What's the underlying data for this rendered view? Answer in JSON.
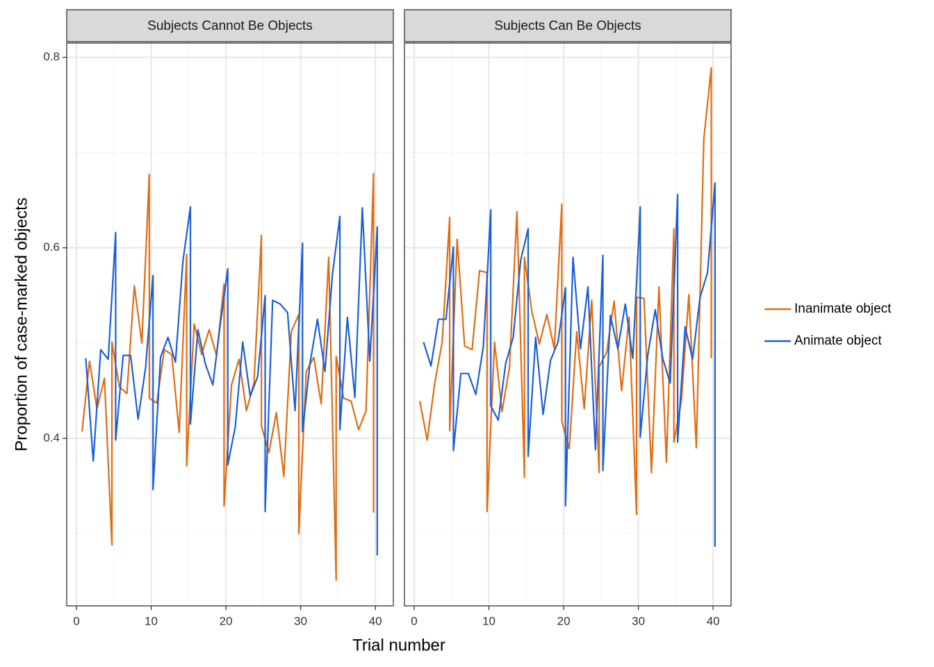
{
  "chart_data": [
    {
      "type": "line",
      "title": "Subjects Cannot Be Objects",
      "x_label": "Trial number",
      "y_label": "Proportion of case-marked objects",
      "xlim": [
        -1.3,
        42.4
      ],
      "ylim": [
        0.224,
        0.815
      ],
      "xticks": [
        0,
        10,
        20,
        30,
        40
      ],
      "x_minor_ticks": [
        5,
        15,
        25,
        35
      ],
      "yticks": [
        0.4,
        0.6,
        0.8
      ],
      "y_minor_ticks": [
        0.3,
        0.5,
        0.7
      ],
      "grid": true,
      "legend": "right",
      "series": [
        {
          "name": "Inanimate object",
          "color": "#e06c12",
          "x": [
            0.75,
            1.75,
            2.75,
            3.75,
            4.75,
            4.75,
            5.75,
            6.75,
            7.75,
            8.75,
            9.75,
            9.75,
            10.75,
            11.75,
            12.75,
            13.75,
            14.75,
            14.75,
            15.75,
            16.75,
            17.75,
            18.75,
            19.75,
            19.75,
            20.75,
            21.75,
            22.75,
            23.75,
            24.75,
            24.75,
            25.75,
            26.75,
            27.75,
            28.75,
            29.75,
            29.75,
            30.75,
            31.75,
            32.75,
            33.75,
            34.75,
            34.75,
            35.75,
            36.75,
            37.75,
            38.75,
            39.75,
            39.75
          ],
          "values": [
            0.407,
            0.481,
            0.431,
            0.463,
            0.288,
            0.501,
            0.454,
            0.447,
            0.56,
            0.5,
            0.677,
            0.442,
            0.437,
            0.493,
            0.488,
            0.406,
            0.593,
            0.371,
            0.52,
            0.488,
            0.514,
            0.487,
            0.562,
            0.329,
            0.456,
            0.483,
            0.429,
            0.458,
            0.613,
            0.413,
            0.385,
            0.427,
            0.36,
            0.512,
            0.53,
            0.3,
            0.47,
            0.485,
            0.436,
            0.59,
            0.251,
            0.486,
            0.442,
            0.439,
            0.409,
            0.429,
            0.678,
            0.322
          ]
        },
        {
          "name": "Animate object",
          "color": "#1a5fd8",
          "x": [
            1.25,
            2.25,
            3.25,
            4.25,
            5.25,
            5.25,
            6.25,
            7.25,
            8.25,
            9.25,
            10.25,
            10.25,
            11.25,
            12.25,
            13.25,
            14.25,
            15.25,
            15.25,
            16.25,
            17.25,
            18.25,
            19.25,
            20.25,
            20.25,
            21.25,
            22.25,
            23.25,
            24.25,
            25.25,
            25.25,
            26.25,
            27.25,
            28.25,
            29.25,
            30.25,
            30.25,
            31.25,
            32.25,
            33.25,
            34.25,
            35.25,
            35.25,
            36.25,
            37.25,
            38.25,
            39.25,
            40.25,
            40.25
          ],
          "values": [
            0.484,
            0.376,
            0.493,
            0.483,
            0.616,
            0.398,
            0.487,
            0.487,
            0.42,
            0.474,
            0.571,
            0.346,
            0.485,
            0.506,
            0.48,
            0.586,
            0.643,
            0.415,
            0.514,
            0.478,
            0.456,
            0.52,
            0.578,
            0.372,
            0.412,
            0.501,
            0.444,
            0.465,
            0.55,
            0.323,
            0.545,
            0.541,
            0.532,
            0.429,
            0.605,
            0.407,
            0.479,
            0.525,
            0.47,
            0.572,
            0.633,
            0.409,
            0.527,
            0.443,
            0.642,
            0.481,
            0.622,
            0.277
          ]
        }
      ]
    },
    {
      "type": "line",
      "title": "Subjects Can Be Objects",
      "xlim": [
        -1.3,
        42.4
      ],
      "ylim": [
        0.224,
        0.815
      ],
      "xticks": [
        0,
        10,
        20,
        30,
        40
      ],
      "x_minor_ticks": [
        5,
        15,
        25,
        35
      ],
      "y_minor_ticks": [
        0.3,
        0.5,
        0.7
      ],
      "grid": true,
      "series": [
        {
          "color": "#e06c12",
          "x": [
            0.75,
            1.75,
            2.75,
            3.75,
            4.75,
            4.75,
            5.75,
            6.75,
            7.75,
            8.75,
            9.75,
            9.75,
            10.75,
            11.75,
            12.75,
            13.75,
            14.75,
            14.75,
            15.75,
            16.75,
            17.75,
            18.75,
            19.75,
            19.75,
            20.75,
            21.75,
            22.75,
            23.75,
            24.75,
            24.75,
            25.75,
            26.75,
            27.75,
            28.75,
            29.75,
            29.75,
            30.75,
            31.75,
            32.75,
            33.75,
            34.75,
            34.75,
            35.75,
            36.75,
            37.75,
            38.75,
            39.75,
            39.75
          ],
          "values": [
            0.439,
            0.398,
            0.458,
            0.501,
            0.632,
            0.408,
            0.609,
            0.497,
            0.493,
            0.576,
            0.574,
            0.323,
            0.501,
            0.428,
            0.474,
            0.638,
            0.359,
            0.59,
            0.533,
            0.499,
            0.53,
            0.494,
            0.646,
            0.418,
            0.389,
            0.512,
            0.431,
            0.545,
            0.364,
            0.475,
            0.49,
            0.544,
            0.45,
            0.527,
            0.32,
            0.548,
            0.547,
            0.364,
            0.559,
            0.375,
            0.62,
            0.396,
            0.439,
            0.551,
            0.39,
            0.714,
            0.789,
            0.484
          ]
        },
        {
          "color": "#1a5fd8",
          "x": [
            1.25,
            2.25,
            3.25,
            4.25,
            5.25,
            5.25,
            6.25,
            7.25,
            8.25,
            9.25,
            10.25,
            10.25,
            11.25,
            12.25,
            13.25,
            14.25,
            15.25,
            15.25,
            16.25,
            17.25,
            18.25,
            19.25,
            20.25,
            20.25,
            21.25,
            22.25,
            23.25,
            24.25,
            25.25,
            25.25,
            26.25,
            27.25,
            28.25,
            29.25,
            30.25,
            30.25,
            31.25,
            32.25,
            33.25,
            34.25,
            35.25,
            35.25,
            36.25,
            37.25,
            38.25,
            39.25,
            40.25,
            40.25
          ],
          "values": [
            0.501,
            0.476,
            0.525,
            0.525,
            0.601,
            0.387,
            0.468,
            0.468,
            0.446,
            0.496,
            0.64,
            0.434,
            0.419,
            0.479,
            0.506,
            0.587,
            0.62,
            0.381,
            0.506,
            0.425,
            0.482,
            0.501,
            0.558,
            0.329,
            0.59,
            0.494,
            0.559,
            0.388,
            0.592,
            0.366,
            0.529,
            0.494,
            0.541,
            0.484,
            0.643,
            0.401,
            0.487,
            0.535,
            0.484,
            0.458,
            0.656,
            0.396,
            0.517,
            0.483,
            0.548,
            0.574,
            0.668,
            0.286
          ]
        }
      ]
    }
  ]
}
